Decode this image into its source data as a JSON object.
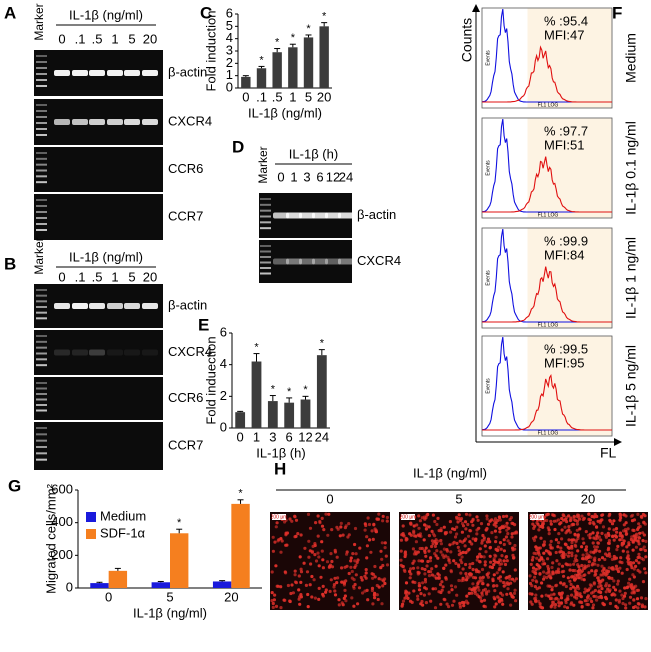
{
  "panels": {
    "A": {
      "letter": "A",
      "marker": "Marker",
      "treatment": "IL-1β (ng/ml)",
      "lanes": [
        "0",
        ".1",
        ".5",
        "1",
        "5",
        "20"
      ],
      "genes": [
        "β-actin",
        "CXCR4",
        "CCR6",
        "CCR7"
      ]
    },
    "B": {
      "letter": "B",
      "marker": "Marker",
      "treatment": "IL-1β (ng/ml)",
      "lanes": [
        "0",
        ".1",
        ".5",
        "1",
        "5",
        "20"
      ],
      "genes": [
        "β-actin",
        "CXCR4",
        "CCR6",
        "CCR7"
      ]
    },
    "D": {
      "letter": "D",
      "marker": "Marker",
      "treatment": "IL-1β (h)",
      "lanes": [
        "0",
        "1",
        "3",
        "6",
        "12",
        "24"
      ],
      "genes": [
        "β-actin",
        "CXCR4"
      ]
    },
    "F": {
      "letter": "F",
      "y_label": "Counts",
      "x_label": "FL",
      "axis_y": "Events",
      "axis_x": "FL1 LOG",
      "histograms": [
        {
          "condition": "Medium",
          "percent": "% :95.4",
          "mfi": "MFI:47"
        },
        {
          "condition": "IL-1β 0.1 ng/ml",
          "percent": "% :97.7",
          "mfi": "MFI:51"
        },
        {
          "condition": "IL-1β 1 ng/ml",
          "percent": "% :99.9",
          "mfi": "MFI:84"
        },
        {
          "condition": "IL-1β 5 ng/ml",
          "percent": "% :99.5",
          "mfi": "MFI:95"
        }
      ]
    },
    "H": {
      "letter": "H",
      "treatment": "IL-1β (ng/ml)",
      "doses": [
        "0",
        "5",
        "20"
      ],
      "scale_bar": "200 μm"
    }
  },
  "chart_data": [
    {
      "panel": "C",
      "type": "bar",
      "y_label": "Fold induction",
      "x_label": "IL-1β (ng/ml)",
      "categories": [
        "0",
        ".1",
        ".5",
        "1",
        "5",
        "20"
      ],
      "values": [
        0.9,
        1.6,
        2.9,
        3.3,
        4.1,
        5.0
      ],
      "errors": [
        0.1,
        0.15,
        0.3,
        0.25,
        0.2,
        0.3
      ],
      "significance": [
        null,
        "*",
        "*",
        "*",
        "*",
        "*"
      ],
      "color": "#3c3c3c",
      "ylim": [
        0,
        6
      ],
      "yticks": [
        0,
        1,
        2,
        3,
        4,
        5,
        6
      ]
    },
    {
      "panel": "E",
      "type": "bar",
      "y_label": "Fold induection",
      "x_label": "IL-1β (h)",
      "categories": [
        "0",
        "1",
        "3",
        "6",
        "12",
        "24"
      ],
      "values": [
        1.0,
        4.2,
        1.7,
        1.6,
        1.8,
        4.6
      ],
      "errors": [
        0.05,
        0.5,
        0.35,
        0.3,
        0.2,
        0.35
      ],
      "significance": [
        null,
        "*",
        "*",
        "*",
        "*",
        "*"
      ],
      "color": "#3c3c3c",
      "ylim": [
        0,
        6
      ],
      "yticks": [
        0,
        2,
        4,
        6
      ]
    },
    {
      "panel": "G",
      "type": "bar",
      "y_label": "Migrated cells/mm²",
      "x_label": "IL-1β (ng/ml)",
      "categories": [
        "0",
        "5",
        "20"
      ],
      "series": [
        {
          "name": "Medium",
          "color": "#1a1adc",
          "values": [
            30,
            35,
            40
          ],
          "errors": [
            5,
            5,
            5
          ],
          "significance": [
            null,
            null,
            null
          ]
        },
        {
          "name": "SDF-1α",
          "color": "#f57f1f",
          "values": [
            105,
            335,
            515
          ],
          "errors": [
            15,
            25,
            25
          ],
          "significance": [
            null,
            "*",
            "*"
          ]
        }
      ],
      "ylim": [
        0,
        600
      ],
      "yticks": [
        0,
        200,
        400,
        600
      ]
    }
  ]
}
